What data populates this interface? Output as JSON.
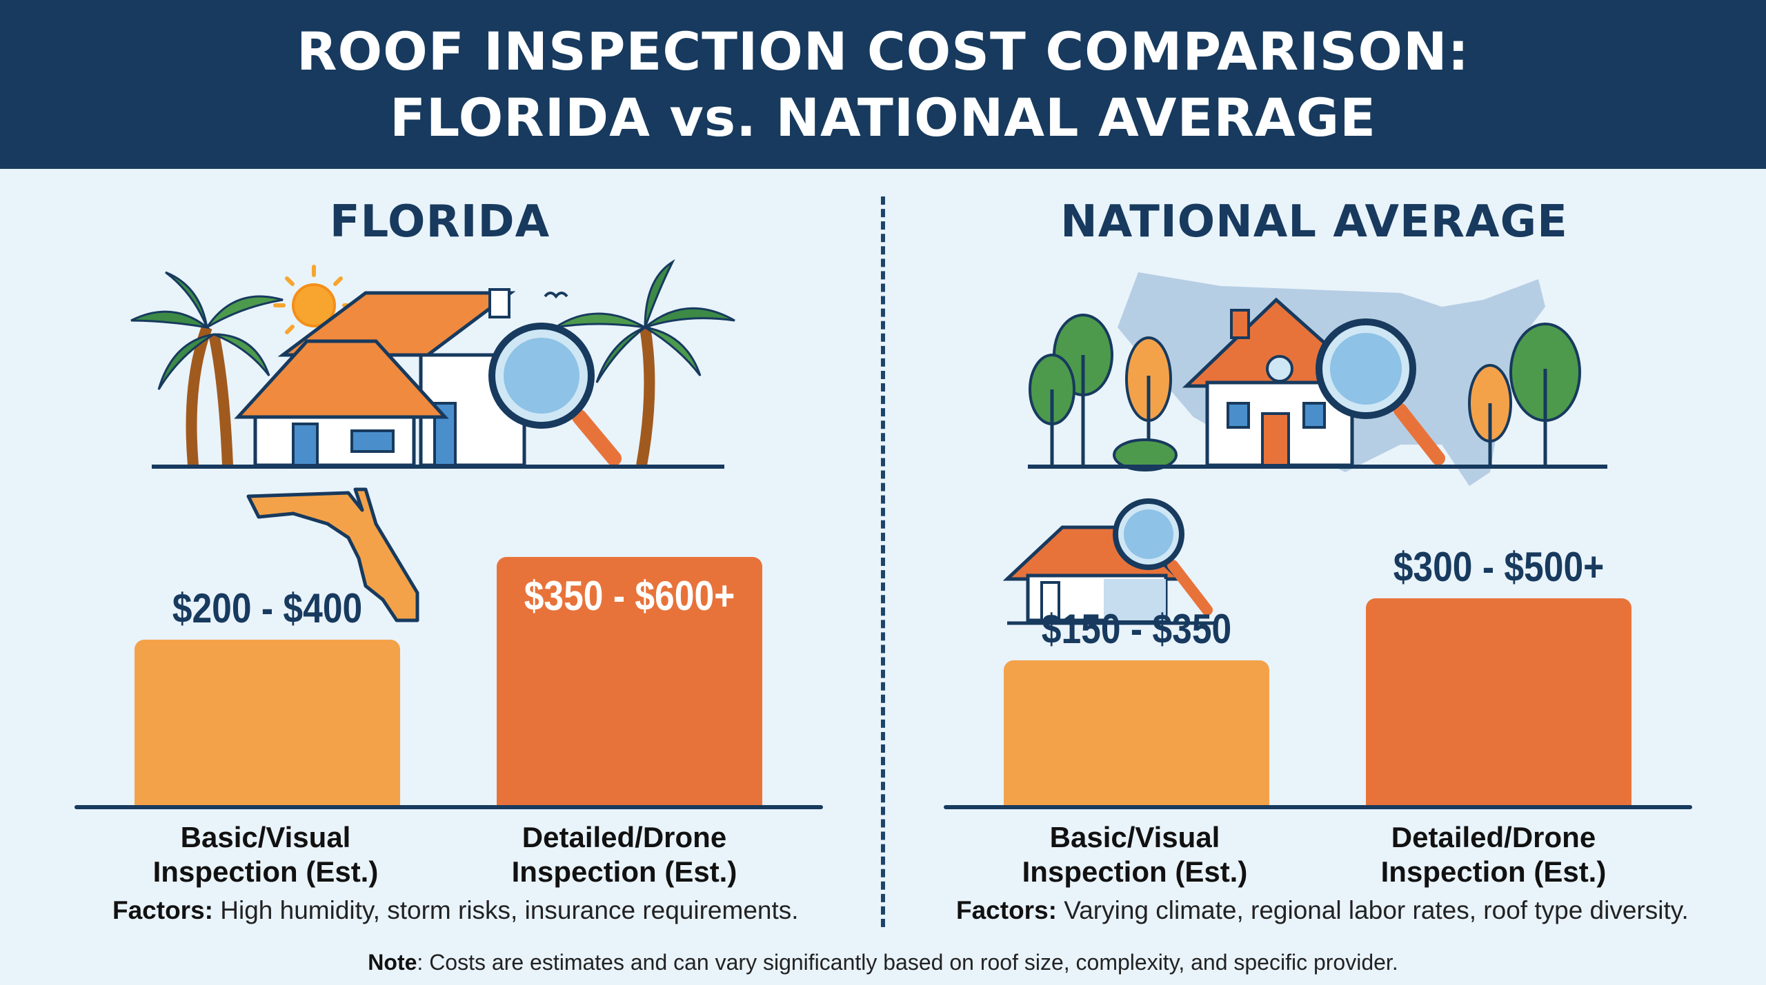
{
  "title_line1": "ROOF INSPECTION COST COMPARISON:",
  "title_line2": "FLORIDA vs. NATIONAL AVERAGE",
  "colors": {
    "header": "#173a5e",
    "background": "#e9f3fa",
    "basic_bar": "#f4a24a",
    "detailed_bar": "#e8733a",
    "navy": "#173a5e"
  },
  "chart_data": [
    {
      "type": "bar",
      "title": "FLORIDA",
      "categories": [
        "Basic/Visual\nInspection (Est.)",
        "Detailed/Drone\nInspection (Est.)"
      ],
      "series": [
        {
          "low": [
            200,
            350
          ],
          "high": [
            400,
            600
          ]
        }
      ],
      "value_labels": [
        "$200 - $400",
        "$350 - $600+"
      ],
      "factors_label": "Factors:",
      "factors_text": " High humidity, storm risks, insurance requirements."
    },
    {
      "type": "bar",
      "title": "NATIONAL AVERAGE",
      "categories": [
        "Basic/Visual\nInspection (Est.)",
        "Detailed/Drone\nInspection (Est.)"
      ],
      "series": [
        {
          "low": [
            150,
            300
          ],
          "high": [
            350,
            500
          ]
        }
      ],
      "value_labels": [
        "$150 - $350",
        "$300 - $500+"
      ],
      "factors_label": "Factors:",
      "factors_text": " Varying climate, regional labor rates, roof type diversity."
    }
  ],
  "note_label": "Note",
  "note_text": ": Costs are estimates and can vary significantly based on roof size, complexity, and specific provider.",
  "icons": [
    "palm-tree-icon",
    "sun-icon",
    "house-icon",
    "magnifying-glass-icon",
    "florida-map-icon",
    "usa-map-icon",
    "tree-icon",
    "bird-icon"
  ]
}
